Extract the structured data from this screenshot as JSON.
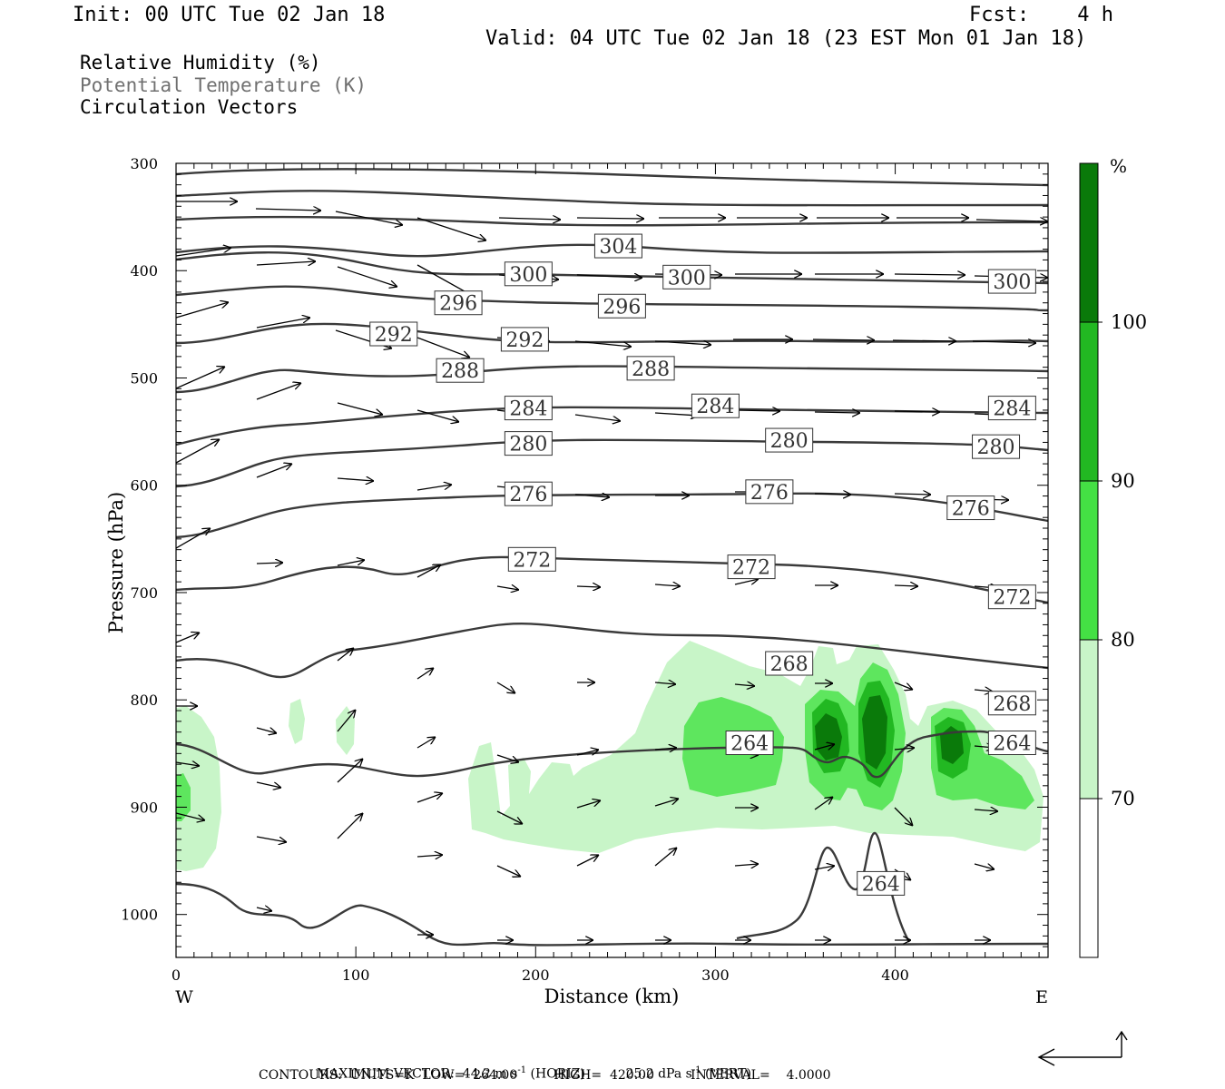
{
  "header": {
    "init": "Init: 00 UTC Tue 02 Jan 18",
    "fcst": "Fcst:    4 h",
    "valid": "Valid: 04 UTC Tue 02 Jan 18 (23 EST Mon 01 Jan 18)"
  },
  "legend": {
    "line1": "Relative Humidity (%)",
    "line2": "Potential Temperature (K)",
    "line3": "Circulation Vectors"
  },
  "colors": {
    "rh70": "#c8f5c8",
    "rh80": "#5ee65e",
    "rh90": "#22b822",
    "rh100": "#0a7a0a",
    "theta": "#3a3a3a",
    "legend_theta": "#707070"
  },
  "footer": {
    "max_label": "MAXIMUM VECTOR:",
    "max_horiz": "44.2 m s",
    "max_horiz_exp": "-1",
    "max_horiz_unit": " (HORIZ)",
    "max_vert": "25.2 dPa s",
    "max_vert_exp": "-1",
    "max_vert_unit": " (VERT)",
    "contours": "CONTOURS:  UNITS=K  LOW=  264.00         HIGH=  420.00         INTERVAL=    4.0000"
  },
  "chart_data": {
    "type": "cross-section",
    "xlabel": "Distance (km)",
    "ylabel": "Pressure (hPa)",
    "xlim": [
      0,
      485
    ],
    "ylim": [
      1040,
      300
    ],
    "x_ticks": [
      0,
      100,
      200,
      300,
      400
    ],
    "y_ticks": [
      300,
      400,
      500,
      600,
      700,
      800,
      900,
      1000
    ],
    "x_end_labels": {
      "left": "W",
      "right": "E"
    },
    "colorbar": {
      "unit": "%",
      "levels": [
        70,
        80,
        90,
        100
      ]
    },
    "theta_labels": [
      {
        "value": "304",
        "x": 246,
        "p": 377
      },
      {
        "value": "300",
        "x": 196,
        "p": 403
      },
      {
        "value": "300",
        "x": 284,
        "p": 406
      },
      {
        "value": "300",
        "x": 465,
        "p": 410
      },
      {
        "value": "296",
        "x": 157,
        "p": 430
      },
      {
        "value": "296",
        "x": 248,
        "p": 433
      },
      {
        "value": "292",
        "x": 121,
        "p": 459
      },
      {
        "value": "292",
        "x": 194,
        "p": 464
      },
      {
        "value": "288",
        "x": 158,
        "p": 493
      },
      {
        "value": "288",
        "x": 264,
        "p": 491
      },
      {
        "value": "284",
        "x": 196,
        "p": 528
      },
      {
        "value": "284",
        "x": 300,
        "p": 526
      },
      {
        "value": "284",
        "x": 465,
        "p": 528
      },
      {
        "value": "280",
        "x": 196,
        "p": 561
      },
      {
        "value": "280",
        "x": 341,
        "p": 558
      },
      {
        "value": "280",
        "x": 456,
        "p": 564
      },
      {
        "value": "276",
        "x": 196,
        "p": 608
      },
      {
        "value": "276",
        "x": 330,
        "p": 606
      },
      {
        "value": "276",
        "x": 442,
        "p": 621
      },
      {
        "value": "272",
        "x": 198,
        "p": 669
      },
      {
        "value": "272",
        "x": 320,
        "p": 676
      },
      {
        "value": "272",
        "x": 465,
        "p": 704
      },
      {
        "value": "268",
        "x": 341,
        "p": 766
      },
      {
        "value": "268",
        "x": 465,
        "p": 803
      },
      {
        "value": "264",
        "x": 319,
        "p": 840
      },
      {
        "value": "264",
        "x": 465,
        "p": 840
      },
      {
        "value": "264",
        "x": 392,
        "p": 971
      }
    ]
  }
}
